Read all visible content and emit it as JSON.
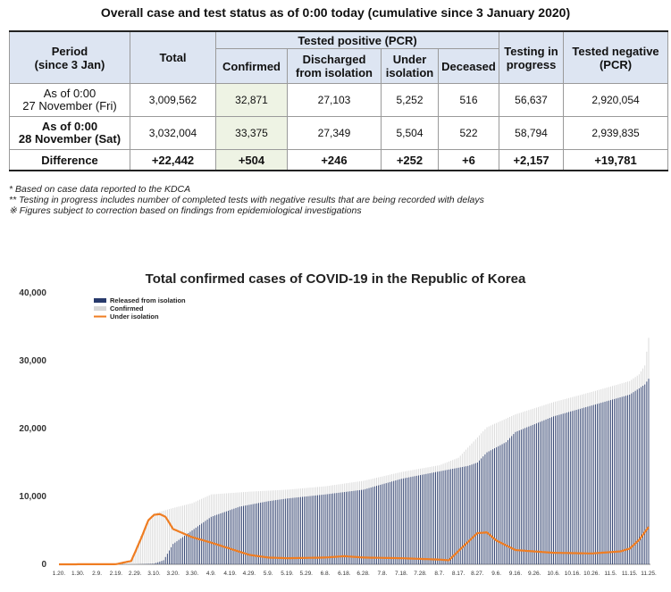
{
  "heading": "Overall case and test status as of 0:00 today (cumulative since 3 January 2020)",
  "table": {
    "headers": {
      "period": "Period",
      "period_sub": "(since 3 Jan)",
      "total": "Total",
      "tested_positive": "Tested positive (PCR)",
      "confirmed": "Confirmed",
      "discharged": "Discharged",
      "discharged_sub": "from isolation",
      "under": "Under",
      "under_sub": "isolation",
      "deceased": "Deceased",
      "testing": "Testing in",
      "testing_sub": "progress",
      "negative": "Tested negative",
      "negative_sub": "(PCR)"
    },
    "rows": [
      {
        "period_line1": "As of 0:00",
        "period_line2": "27 November (Fri)",
        "total": "3,009,562",
        "confirmed": "32,871",
        "discharged": "27,103",
        "under": "5,252",
        "deceased": "516",
        "testing": "56,637",
        "negative": "2,920,054"
      },
      {
        "period_line1": "As of 0:00",
        "period_line2": "28 November (Sat)",
        "total": "3,032,004",
        "confirmed": "33,375",
        "discharged": "27,349",
        "under": "5,504",
        "deceased": "522",
        "testing": "58,794",
        "negative": "2,939,835"
      }
    ],
    "difference": {
      "label": "Difference",
      "total": "+22,442",
      "confirmed": "+504",
      "discharged": "+246",
      "under": "+252",
      "deceased": "+6",
      "testing": "+2,157",
      "negative": "+19,781"
    }
  },
  "notes": [
    "* Based on case data reported to the KDCA",
    "** Testing in progress includes number of completed tests with negative results that are being recorded with delays",
    "※ Figures subject to correction based on findings from epidemiological investigations"
  ],
  "chart_data": {
    "type": "bar",
    "title": "Total confirmed cases of COVID-19 in the Republic of Korea",
    "legend": [
      "Released from isolation",
      "Confirmed",
      "Under isolation"
    ],
    "legend_placement": "top-left",
    "colors": {
      "released": "#283a6b",
      "confirmed": "#d8d8d8",
      "under": "#ef7d22"
    },
    "ylim": [
      0,
      40000
    ],
    "yticks": [
      0,
      10000,
      20000,
      30000,
      40000
    ],
    "ytick_labels": [
      "0",
      "10,000",
      "20,000",
      "30,000",
      "40,000"
    ],
    "xtick_labels": [
      "1.20.",
      "1.30.",
      "2.9.",
      "2.19.",
      "2.29.",
      "3.10.",
      "3.20.",
      "3.30.",
      "4.9.",
      "4.19.",
      "4.29.",
      "5.9.",
      "5.19.",
      "5.29.",
      "6.8.",
      "6.18.",
      "6.28.",
      "7.8.",
      "7.18.",
      "7.28.",
      "8.7.",
      "8.17.",
      "8.27.",
      "9.6.",
      "9.16.",
      "9.26.",
      "10.6.",
      "10.16.",
      "10.26.",
      "11.5.",
      "11.15.",
      "11.25."
    ],
    "series_points": {
      "confirmed": [
        [
          0,
          1
        ],
        [
          30,
          28
        ],
        [
          38,
          600
        ],
        [
          43,
          4200
        ],
        [
          50,
          7500
        ],
        [
          60,
          8300
        ],
        [
          70,
          9000
        ],
        [
          80,
          10300
        ],
        [
          100,
          10700
        ],
        [
          120,
          11000
        ],
        [
          140,
          11500
        ],
        [
          160,
          12300
        ],
        [
          180,
          13600
        ],
        [
          200,
          14600
        ],
        [
          210,
          15700
        ],
        [
          220,
          18700
        ],
        [
          225,
          20200
        ],
        [
          240,
          22100
        ],
        [
          260,
          23900
        ],
        [
          280,
          25400
        ],
        [
          300,
          27000
        ],
        [
          305,
          28000
        ],
        [
          308,
          29300
        ],
        [
          310,
          33375
        ]
      ],
      "released": [
        [
          0,
          0
        ],
        [
          40,
          0
        ],
        [
          50,
          100
        ],
        [
          55,
          600
        ],
        [
          60,
          3000
        ],
        [
          70,
          5000
        ],
        [
          80,
          7000
        ],
        [
          95,
          8500
        ],
        [
          110,
          9300
        ],
        [
          120,
          9700
        ],
        [
          140,
          10300
        ],
        [
          160,
          11000
        ],
        [
          180,
          12600
        ],
        [
          200,
          13700
        ],
        [
          215,
          14500
        ],
        [
          220,
          15000
        ],
        [
          225,
          16500
        ],
        [
          235,
          18000
        ],
        [
          240,
          19500
        ],
        [
          260,
          21800
        ],
        [
          280,
          23400
        ],
        [
          300,
          25000
        ],
        [
          308,
          26500
        ],
        [
          310,
          27349
        ]
      ],
      "under": [
        [
          0,
          0
        ],
        [
          30,
          20
        ],
        [
          38,
          500
        ],
        [
          43,
          3700
        ],
        [
          47,
          6500
        ],
        [
          50,
          7300
        ],
        [
          53,
          7400
        ],
        [
          56,
          7000
        ],
        [
          60,
          5200
        ],
        [
          70,
          4000
        ],
        [
          80,
          3200
        ],
        [
          90,
          2300
        ],
        [
          100,
          1400
        ],
        [
          110,
          1000
        ],
        [
          120,
          900
        ],
        [
          140,
          1000
        ],
        [
          150,
          1200
        ],
        [
          160,
          1000
        ],
        [
          180,
          900
        ],
        [
          200,
          700
        ],
        [
          205,
          600
        ],
        [
          212,
          2500
        ],
        [
          220,
          4600
        ],
        [
          225,
          4700
        ],
        [
          230,
          3500
        ],
        [
          240,
          2100
        ],
        [
          260,
          1700
        ],
        [
          280,
          1600
        ],
        [
          295,
          1900
        ],
        [
          300,
          2300
        ],
        [
          305,
          3600
        ],
        [
          310,
          5504
        ]
      ]
    }
  }
}
